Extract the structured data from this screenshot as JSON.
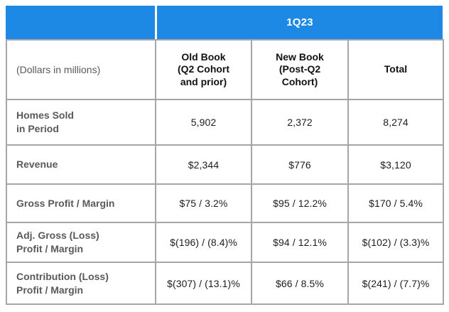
{
  "colors": {
    "banner_blue": "#1e88e5",
    "grid_gray": "#a6a6a6",
    "label_gray": "#58595b",
    "value_black": "#1d1d1d",
    "banner_text": "#ffffff"
  },
  "chart_data": {
    "type": "table",
    "title": "1Q23",
    "unit_note": "(Dollars in millions)",
    "columns": [
      "Old Book\n(Q2 Cohort\nand prior)",
      "New Book\n(Post-Q2\nCohort)",
      "Total"
    ],
    "rows": [
      {
        "label": "Homes Sold\nin Period",
        "values": [
          "5,902",
          "2,372",
          "8,274"
        ]
      },
      {
        "label": "Revenue",
        "values": [
          "$2,344",
          "$776",
          "$3,120"
        ]
      },
      {
        "label": "Gross Profit / Margin",
        "values": [
          "$75 / 3.2%",
          "$95 / 12.2%",
          "$170 / 5.4%"
        ]
      },
      {
        "label": "Adj. Gross (Loss)\nProfit / Margin",
        "values": [
          "$(196) / (8.4)%",
          "$94 / 12.1%",
          "$(102) / (3.3)%"
        ]
      },
      {
        "label": "Contribution (Loss)\nProfit / Margin",
        "values": [
          "$(307) / (13.1)%",
          "$66 / 8.5%",
          "$(241) / (7.7)%"
        ]
      }
    ]
  }
}
